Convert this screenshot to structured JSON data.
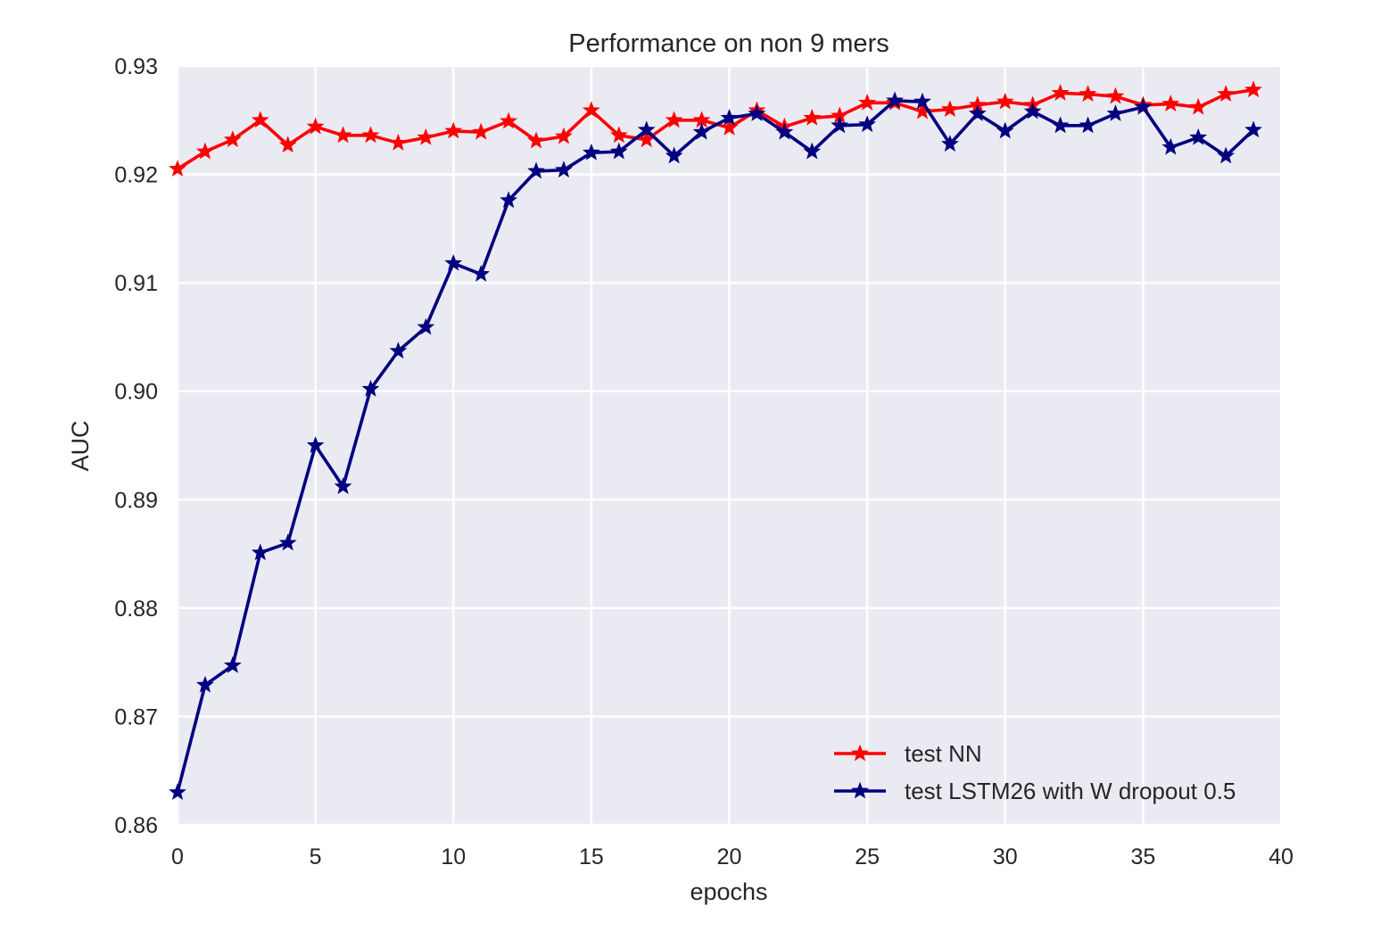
{
  "chart_data": {
    "type": "line",
    "title": "Performance on non 9 mers",
    "xlabel": "epochs",
    "ylabel": "AUC",
    "xlim": [
      0,
      40
    ],
    "ylim": [
      0.86,
      0.93
    ],
    "xticks": [
      0,
      5,
      10,
      15,
      20,
      25,
      30,
      35,
      40
    ],
    "xtick_labels": [
      "0",
      "5",
      "10",
      "15",
      "20",
      "25",
      "30",
      "35",
      "40"
    ],
    "yticks": [
      0.86,
      0.87,
      0.88,
      0.89,
      0.9,
      0.91,
      0.92,
      0.93
    ],
    "ytick_labels": [
      "0.86",
      "0.87",
      "0.88",
      "0.89",
      "0.90",
      "0.91",
      "0.92",
      "0.93"
    ],
    "grid": true,
    "legend_position": "lower-right",
    "x": [
      0,
      1,
      2,
      3,
      4,
      5,
      6,
      7,
      8,
      9,
      10,
      11,
      12,
      13,
      14,
      15,
      16,
      17,
      18,
      19,
      20,
      21,
      22,
      23,
      24,
      25,
      26,
      27,
      28,
      29,
      30,
      31,
      32,
      33,
      34,
      35,
      36,
      37,
      38,
      39
    ],
    "series": [
      {
        "name": "test NN",
        "color": "#ff0000",
        "marker": "star",
        "values": [
          0.9205,
          0.9221,
          0.9232,
          0.925,
          0.9227,
          0.9244,
          0.9236,
          0.9236,
          0.9229,
          0.9234,
          0.924,
          0.9239,
          0.9249,
          0.9231,
          0.9235,
          0.9259,
          0.9236,
          0.9232,
          0.925,
          0.925,
          0.9243,
          0.9259,
          0.9244,
          0.9252,
          0.9254,
          0.9266,
          0.9266,
          0.9258,
          0.926,
          0.9264,
          0.9267,
          0.9264,
          0.9275,
          0.9274,
          0.9272,
          0.9264,
          0.9265,
          0.9262,
          0.9274,
          0.9278
        ]
      },
      {
        "name": "test LSTM26 with W dropout 0.5",
        "color": "#000080",
        "marker": "star",
        "values": [
          0.863,
          0.8729,
          0.8747,
          0.8851,
          0.886,
          0.895,
          0.8912,
          0.9002,
          0.9037,
          0.9059,
          0.9118,
          0.9108,
          0.9176,
          0.9203,
          0.9204,
          0.922,
          0.9221,
          0.9241,
          0.9217,
          0.9239,
          0.9252,
          0.9256,
          0.9239,
          0.9221,
          0.9245,
          0.9246,
          0.9268,
          0.9267,
          0.9228,
          0.9256,
          0.924,
          0.9258,
          0.9245,
          0.9245,
          0.9256,
          0.9262,
          0.9225,
          0.9234,
          0.9217,
          0.9241
        ]
      }
    ]
  }
}
